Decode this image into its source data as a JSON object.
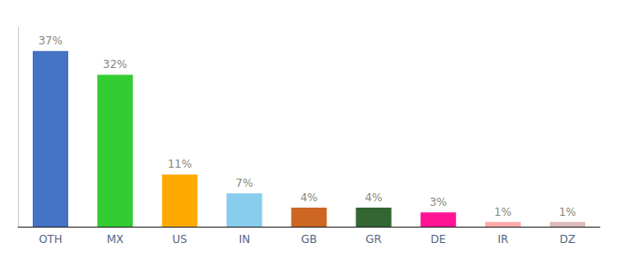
{
  "chart_data": {
    "type": "bar",
    "categories": [
      "OTH",
      "MX",
      "US",
      "IN",
      "GB",
      "GR",
      "DE",
      "IR",
      "DZ"
    ],
    "values": [
      37,
      32,
      11,
      7,
      4,
      4,
      3,
      1,
      1
    ],
    "value_labels": [
      "37%",
      "32%",
      "11%",
      "7%",
      "4%",
      "4%",
      "3%",
      "1%",
      "1%"
    ],
    "colors": [
      "#4472c4",
      "#33cc33",
      "#ffaa00",
      "#88ccee",
      "#cc6622",
      "#336633",
      "#ff1493",
      "#ffaaaa",
      "#ddbbbb"
    ],
    "ylim": [
      0,
      42
    ],
    "grid": false,
    "data_labels": true,
    "tick_labels": "x"
  }
}
